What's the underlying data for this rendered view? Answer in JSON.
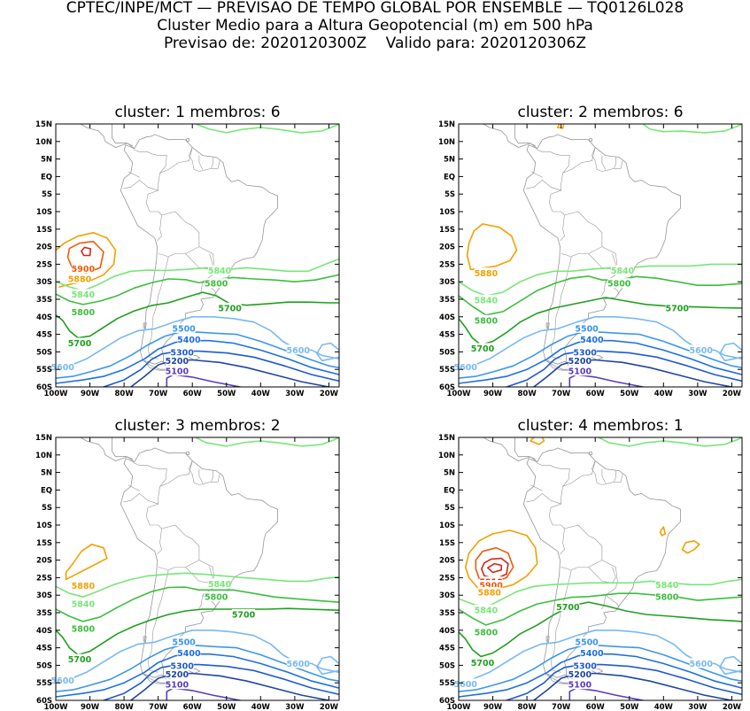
{
  "header": {
    "line1": "CPTEC/INPE/MCT — PREVISAO DE TEMPO GLOBAL POR ENSEMBLE — TQ0126L028",
    "line2": "Cluster Medio para a Altura Geopotencial (m) em 500 hPa",
    "line3": "Previsao de: 2020120300Z    Valido para: 2020120306Z"
  },
  "axes": {
    "lat_labels": [
      "15N",
      "10N",
      "5N",
      "EQ",
      "5S",
      "10S",
      "15S",
      "20S",
      "25S",
      "30S",
      "35S",
      "40S",
      "45S",
      "50S",
      "55S",
      "60S"
    ],
    "lon_labels": [
      "100W",
      "90W",
      "80W",
      "70W",
      "60W",
      "50W",
      "40W",
      "30W",
      "20W"
    ]
  },
  "colors": {
    "c5100": "#5a3cbe",
    "c5200": "#1e46a0",
    "c5300": "#1e5ad2",
    "c5400": "#1e6ee6",
    "c5500": "#3c96f0",
    "c5600": "#78b9f5",
    "c5700": "#1ea01e",
    "c5800": "#3cbe3c",
    "c5840": "#78e678",
    "c5880": "#f5a000",
    "c5900": "#f05a0a",
    "c5910": "#d22818",
    "continent": "#969696",
    "frame": "#000000"
  },
  "panels": [
    {
      "title": "cluster: 1   membros: 6",
      "labels": [
        {
          "text": "5900",
          "lon": -92,
          "lat": -26.3,
          "color": "c5900"
        },
        {
          "text": "5880",
          "lon": -93,
          "lat": -29.2,
          "color": "c5880"
        },
        {
          "text": "5840",
          "lon": -92,
          "lat": -33.6,
          "color": "c5840"
        },
        {
          "text": "5840",
          "lon": -52,
          "lat": -26.8,
          "color": "c5840"
        },
        {
          "text": "5800",
          "lon": -53,
          "lat": -30.5,
          "color": "c5800"
        },
        {
          "text": "5800",
          "lon": -92,
          "lat": -38.6,
          "color": "c5800"
        },
        {
          "text": "5700",
          "lon": -49,
          "lat": -37.5,
          "color": "c5700"
        },
        {
          "text": "5700",
          "lon": -93,
          "lat": -47.5,
          "color": "c5700"
        },
        {
          "text": "5600",
          "lon": -98,
          "lat": -54.3,
          "color": "c5600"
        },
        {
          "text": "5600",
          "lon": -29,
          "lat": -49.5,
          "color": "c5600"
        },
        {
          "text": "5500",
          "lon": -62.5,
          "lat": -43.3,
          "color": "c5500"
        },
        {
          "text": "5400",
          "lon": -61,
          "lat": -46.5,
          "color": "c5400"
        },
        {
          "text": "5300",
          "lon": -63,
          "lat": -50.2,
          "color": "c5300"
        },
        {
          "text": "5200",
          "lon": -64.5,
          "lat": -52.5,
          "color": "c5200"
        },
        {
          "text": "5100",
          "lon": -64.5,
          "lat": -55.5,
          "color": "c5100"
        }
      ]
    },
    {
      "title": "cluster: 2   membros: 6",
      "labels": [
        {
          "text": "5880",
          "lon": -92,
          "lat": -27.5,
          "color": "c5880"
        },
        {
          "text": "5840",
          "lon": -92,
          "lat": -35.2,
          "color": "c5840"
        },
        {
          "text": "5840",
          "lon": -52,
          "lat": -26.8,
          "color": "c5840"
        },
        {
          "text": "5800",
          "lon": -53,
          "lat": -30.5,
          "color": "c5800"
        },
        {
          "text": "5800",
          "lon": -92,
          "lat": -41,
          "color": "c5800"
        },
        {
          "text": "5700",
          "lon": -36,
          "lat": -37.5,
          "color": "c5700"
        },
        {
          "text": "5700",
          "lon": -93,
          "lat": -49,
          "color": "c5700"
        },
        {
          "text": "5600",
          "lon": -98,
          "lat": -54.3,
          "color": "c5600"
        },
        {
          "text": "5600",
          "lon": -29,
          "lat": -49.5,
          "color": "c5600"
        },
        {
          "text": "5500",
          "lon": -62.5,
          "lat": -43.3,
          "color": "c5500"
        },
        {
          "text": "5400",
          "lon": -61,
          "lat": -46.5,
          "color": "c5400"
        },
        {
          "text": "5300",
          "lon": -63,
          "lat": -50.2,
          "color": "c5300"
        },
        {
          "text": "5200",
          "lon": -64.5,
          "lat": -52.5,
          "color": "c5200"
        },
        {
          "text": "5100",
          "lon": -64.5,
          "lat": -55.5,
          "color": "c5100"
        }
      ]
    },
    {
      "title": "cluster: 3   membros: 2",
      "labels": [
        {
          "text": "5880",
          "lon": -92,
          "lat": -27.3,
          "color": "c5880"
        },
        {
          "text": "5840",
          "lon": -92,
          "lat": -32.5,
          "color": "c5840"
        },
        {
          "text": "5840",
          "lon": -52,
          "lat": -26.8,
          "color": "c5840"
        },
        {
          "text": "5800",
          "lon": -53,
          "lat": -30.5,
          "color": "c5800"
        },
        {
          "text": "5800",
          "lon": -92,
          "lat": -39.6,
          "color": "c5800"
        },
        {
          "text": "5700",
          "lon": -45,
          "lat": -35.5,
          "color": "c5700"
        },
        {
          "text": "5700",
          "lon": -93,
          "lat": -48.3,
          "color": "c5700"
        },
        {
          "text": "5600",
          "lon": -98,
          "lat": -54.3,
          "color": "c5600"
        },
        {
          "text": "5600",
          "lon": -29,
          "lat": -49.5,
          "color": "c5600"
        },
        {
          "text": "5500",
          "lon": -62.5,
          "lat": -43.3,
          "color": "c5500"
        },
        {
          "text": "5400",
          "lon": -61,
          "lat": -46.5,
          "color": "c5400"
        },
        {
          "text": "5300",
          "lon": -63,
          "lat": -50.2,
          "color": "c5300"
        },
        {
          "text": "5200",
          "lon": -64.5,
          "lat": -52.5,
          "color": "c5200"
        },
        {
          "text": "5100",
          "lon": -64.5,
          "lat": -55.5,
          "color": "c5100"
        }
      ]
    },
    {
      "title": "cluster: 4   membros: 1",
      "labels": [
        {
          "text": "5910",
          "lon": -90.5,
          "lat": -26.2,
          "color": "c5910"
        },
        {
          "text": "5900",
          "lon": -90.5,
          "lat": -27.2,
          "color": "c5900"
        },
        {
          "text": "5880",
          "lon": -91,
          "lat": -29.2,
          "color": "c5880"
        },
        {
          "text": "5840",
          "lon": -92,
          "lat": -34.2,
          "color": "c5840"
        },
        {
          "text": "5840",
          "lon": -39,
          "lat": -27,
          "color": "c5840"
        },
        {
          "text": "5800",
          "lon": -39,
          "lat": -30.5,
          "color": "c5800"
        },
        {
          "text": "5800",
          "lon": -92,
          "lat": -40.6,
          "color": "c5800"
        },
        {
          "text": "5700",
          "lon": -68,
          "lat": -33.3,
          "color": "c5700"
        },
        {
          "text": "5700",
          "lon": -93,
          "lat": -49.3,
          "color": "c5700"
        },
        {
          "text": "5600",
          "lon": -98,
          "lat": -55.3,
          "color": "c5600"
        },
        {
          "text": "5600",
          "lon": -29,
          "lat": -49.5,
          "color": "c5600"
        },
        {
          "text": "5500",
          "lon": -62.5,
          "lat": -43.3,
          "color": "c5500"
        },
        {
          "text": "5400",
          "lon": -61,
          "lat": -46.5,
          "color": "c5400"
        },
        {
          "text": "5300",
          "lon": -63,
          "lat": -50.2,
          "color": "c5300"
        },
        {
          "text": "5200",
          "lon": -64.5,
          "lat": -52.5,
          "color": "c5200"
        },
        {
          "text": "5100",
          "lon": -64.5,
          "lat": -55.5,
          "color": "c5100"
        }
      ]
    }
  ]
}
